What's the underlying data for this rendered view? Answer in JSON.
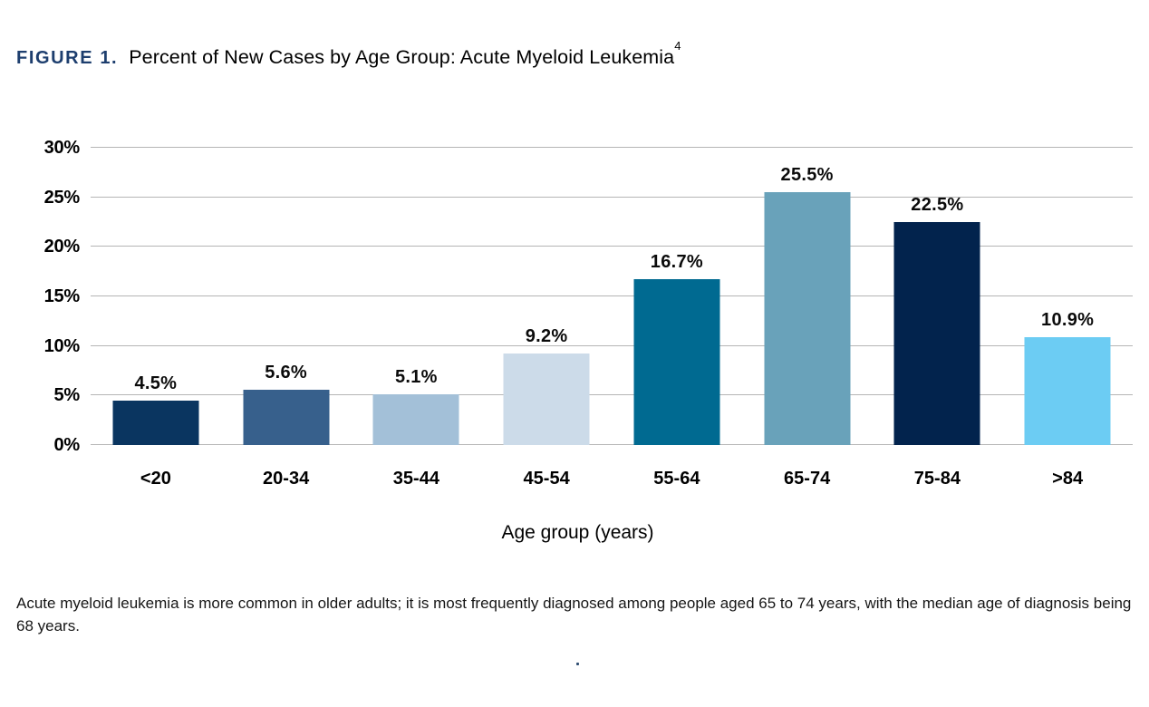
{
  "figure": {
    "label": "FIGURE 1.",
    "title": "Percent of New Cases by Age Group: Acute Myeloid Leukemia",
    "title_superscript": "4"
  },
  "chart_data": {
    "type": "bar",
    "categories": [
      "<20",
      "20-34",
      "35-44",
      "45-54",
      "55-64",
      "65-74",
      "75-84",
      ">84"
    ],
    "values": [
      4.5,
      5.6,
      5.1,
      9.2,
      16.7,
      25.5,
      22.5,
      10.9
    ],
    "value_labels": [
      "4.5%",
      "5.6%",
      "5.1%",
      "9.2%",
      "16.7%",
      "25.5%",
      "22.5%",
      "10.9%"
    ],
    "bar_colors": [
      "#0a3560",
      "#37608c",
      "#a3c0d8",
      "#ccdbe9",
      "#006a91",
      "#69a2ba",
      "#02234d",
      "#6cccf3"
    ],
    "title": "Percent of New Cases by Age Group: Acute Myeloid Leukemia",
    "xlabel": "Age group (years)",
    "ylabel": "",
    "ylim": [
      0,
      30
    ],
    "ytick_step": 5,
    "ytick_labels": [
      "0%",
      "5%",
      "10%",
      "15%",
      "20%",
      "25%",
      "30%"
    ],
    "grid": true,
    "gridline_color": "#b5b5b5",
    "legend": "none"
  },
  "caption": {
    "text": "Acute myeloid leukemia is more common in older adults; it is most frequently diagnosed among people aged 65 to 74 years, with the median age of diagnosis being 68 years."
  },
  "footer": {
    "mark": "."
  },
  "colors": {
    "figure_label": "#1d3e6e",
    "body_text": "#161616",
    "background": "#ffffff"
  }
}
